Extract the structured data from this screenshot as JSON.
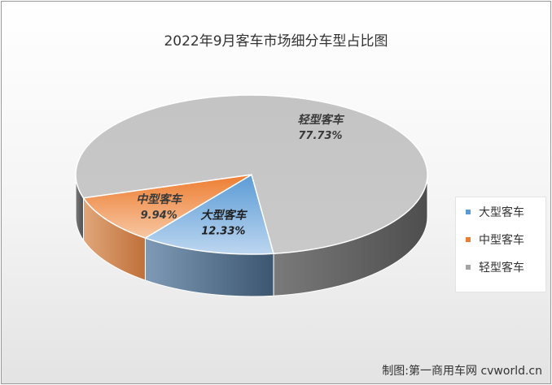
{
  "chart_data": {
    "type": "pie",
    "title": "2022年9月客车市场细分车型占比图",
    "categories": [
      "大型客车",
      "中型客车",
      "轻型客车"
    ],
    "values": [
      12.33,
      9.94,
      77.73
    ],
    "data_labels": [
      "12.33%",
      "9.94%",
      "77.73%"
    ],
    "colors": [
      "#5b9bd5",
      "#ed7d31",
      "#a5a5a5"
    ],
    "style": "3d",
    "legend_position": "right"
  },
  "credit": "制图:第一商用车网 cvworld.cn"
}
